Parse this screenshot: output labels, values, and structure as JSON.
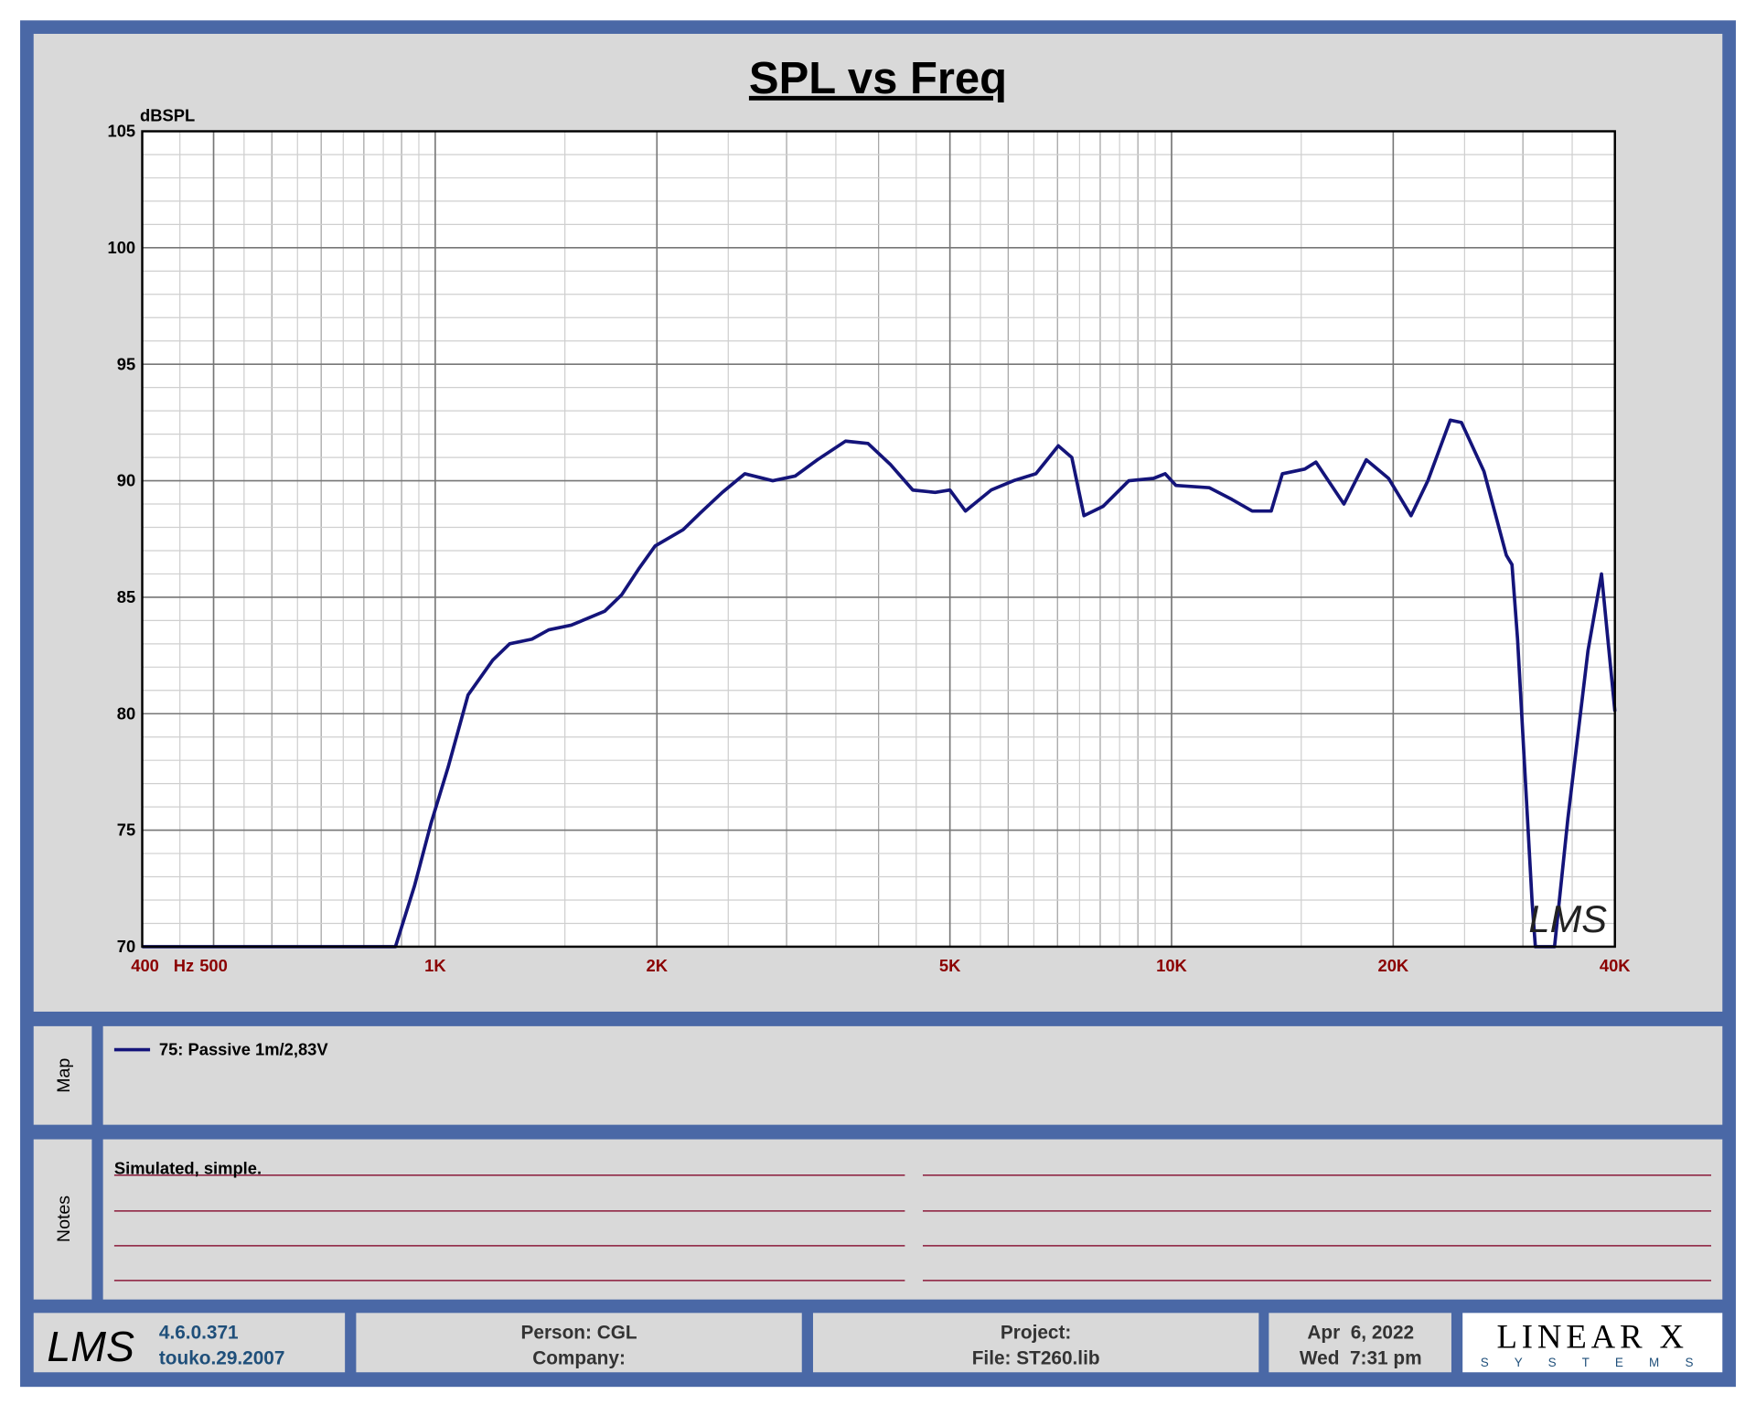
{
  "chart_data": {
    "type": "line",
    "title": "SPL vs Freq",
    "x_label": "Hz",
    "y_label": "dBSPL",
    "x_scale": "log",
    "grid": true,
    "xlim": [
      400,
      40000
    ],
    "ylim": [
      70,
      105
    ],
    "xticks": [
      400,
      500,
      {
        "value": 1000,
        "label": "1K"
      },
      {
        "value": 2000,
        "label": "2K"
      },
      {
        "value": 5000,
        "label": "5K"
      },
      {
        "value": 10000,
        "label": "10K"
      },
      {
        "value": 20000,
        "label": "20K"
      },
      {
        "value": 40000,
        "label": "40K"
      }
    ],
    "yticks": [
      70,
      75,
      80,
      85,
      90,
      95,
      100,
      105
    ],
    "series": [
      {
        "name": "75: Passive 1m/2,83V",
        "color": "#14147a",
        "x": [
          400,
          883,
          937,
          987,
          1041,
          1108,
          1197,
          1262,
          1353,
          1426,
          1530,
          1699,
          1791,
          1888,
          1989,
          2171,
          2288,
          2454,
          2633,
          2873,
          3081,
          3304,
          3608,
          3870,
          4150,
          4452,
          4775,
          5000,
          5249,
          5688,
          6100,
          6543,
          7017,
          7320,
          7604,
          8072,
          8748,
          9450,
          9800,
          10135,
          11256,
          12072,
          12866,
          13656,
          14141,
          15165,
          15705,
          17141,
          18383,
          19712,
          21146,
          22287,
          23903,
          24756,
          26562,
          28487,
          28993,
          29504,
          30879,
          31194,
          33120,
          34532,
          36771,
          38359,
          40000
        ],
        "values": [
          70,
          70,
          72.6,
          75.3,
          77.7,
          80.8,
          82.3,
          83.0,
          83.2,
          83.6,
          83.8,
          84.4,
          85.1,
          86.2,
          87.2,
          87.9,
          88.6,
          89.5,
          90.3,
          90.0,
          90.2,
          90.9,
          91.7,
          91.6,
          90.7,
          89.6,
          89.5,
          89.6,
          88.7,
          89.6,
          90.0,
          90.3,
          91.5,
          91.0,
          88.5,
          88.9,
          90.0,
          90.1,
          90.3,
          89.8,
          89.7,
          89.2,
          88.7,
          88.7,
          90.3,
          90.5,
          90.8,
          89.0,
          90.9,
          90.1,
          88.5,
          90.0,
          92.6,
          92.5,
          90.4,
          86.8,
          86.4,
          83.2,
          71.9,
          70,
          70,
          75.5,
          82.7,
          86.0,
          80.1
        ]
      }
    ]
  },
  "map": {
    "label": "Map"
  },
  "notes": {
    "label": "Notes",
    "text": "Simulated, simple."
  },
  "footer": {
    "logo": "LMS",
    "version": "4.6.0.371",
    "build": "touko.29.2007",
    "person": "Person: CGL",
    "company": "Company:",
    "project": "Project:",
    "file": "File: ST260.lib",
    "date": "Apr  6, 2022",
    "time": "Wed  7:31 pm",
    "brand": "LINEAR X",
    "brand_sub": "S Y S T E M S"
  }
}
